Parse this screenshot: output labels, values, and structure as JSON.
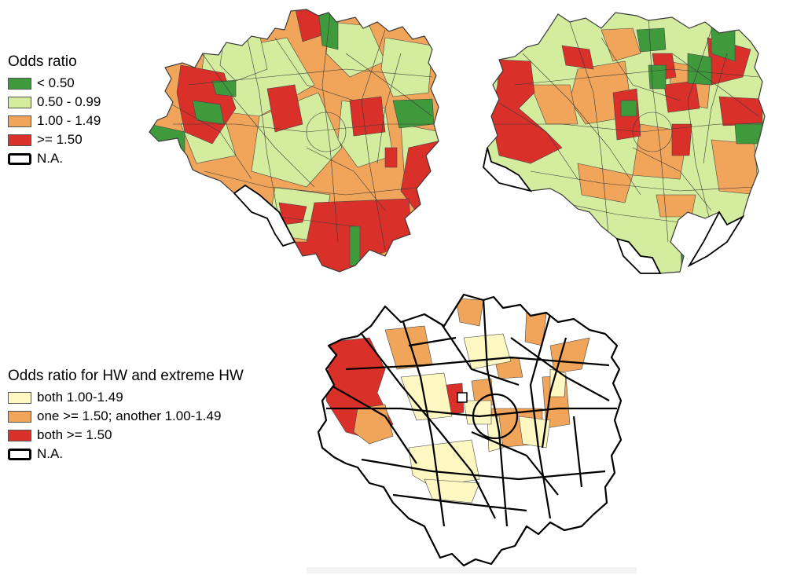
{
  "colors": {
    "dark_green": "#3f9a3c",
    "light_green": "#d4ec9e",
    "orange": "#f1a55a",
    "red": "#d9302a",
    "pale_yellow": "#fdf7c2",
    "na_fill": "#ffffff",
    "na_border": "#000000"
  },
  "legend_odds": {
    "title": "Odds ratio",
    "items": [
      {
        "label": "< 0.50",
        "color": "#3f9a3c"
      },
      {
        "label": "0.50 - 0.99",
        "color": "#d4ec9e"
      },
      {
        "label": "1.00 - 1.49",
        "color": "#f1a55a"
      },
      {
        "label": ">= 1.50",
        "color": "#d9302a"
      },
      {
        "label": "N.A.",
        "color": "#ffffff"
      }
    ]
  },
  "legend_combined": {
    "title": "Odds ratio for HW and extreme HW",
    "items": [
      {
        "label": "both 1.00-1.49",
        "color": "#fdf7c2"
      },
      {
        "label": "one >= 1.50; another 1.00-1.49",
        "color": "#f1a55a"
      },
      {
        "label": "both >= 1.50",
        "color": "#d9302a"
      },
      {
        "label": "N.A.",
        "color": "#ffffff"
      }
    ]
  }
}
